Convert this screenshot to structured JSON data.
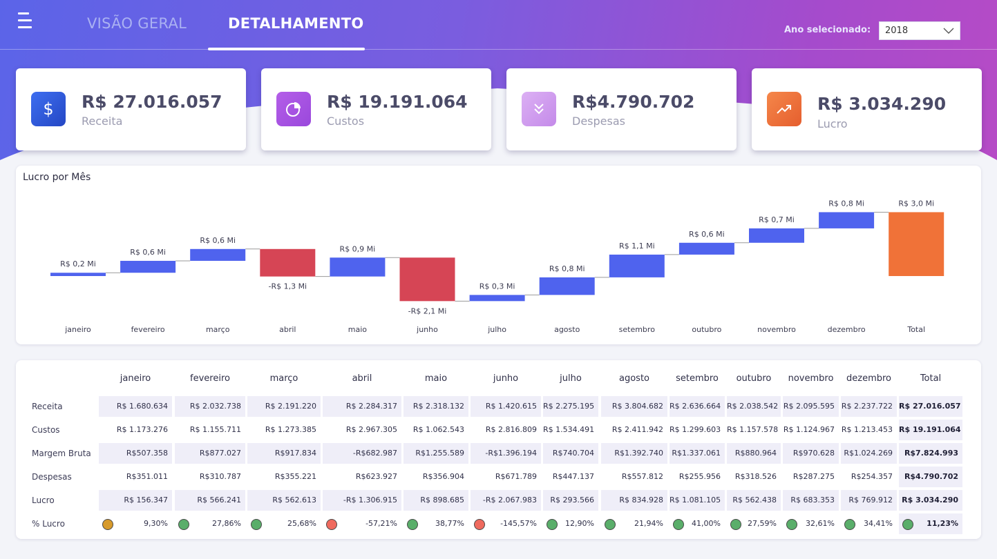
{
  "header": {
    "tabs": [
      {
        "label": "VISÃO GERAL",
        "active": false
      },
      {
        "label": "DETALHAMENTO",
        "active": true
      }
    ],
    "year_label": "Ano selecionado:",
    "year_value": "2018"
  },
  "kpis": [
    {
      "value": "R$ 27.016.057",
      "label": "Receita",
      "icon": "dollar-icon",
      "color": "#2f5bd9"
    },
    {
      "value": "R$ 19.191.064",
      "label": "Custos",
      "icon": "pie-chart-icon",
      "color": "#a84fe0"
    },
    {
      "value": "R$4.790.702",
      "label": "Despesas",
      "icon": "chevrons-down-icon",
      "color": "#cf9cf0"
    },
    {
      "value": "R$ 3.034.290",
      "label": "Lucro",
      "icon": "trending-up-icon",
      "color": "#f07238"
    }
  ],
  "colors": {
    "increase": "#4f63ee",
    "decrease": "#d64555",
    "total": "#f07238"
  },
  "chart_data": {
    "type": "waterfall",
    "title": "Lucro por Mês",
    "categories": [
      "janeiro",
      "fevereiro",
      "março",
      "abril",
      "maio",
      "junho",
      "julho",
      "agosto",
      "setembro",
      "outubro",
      "novembro",
      "dezembro",
      "Total"
    ],
    "values": [
      0.156347,
      0.566241,
      0.562613,
      -1.306915,
      0.898685,
      -2.067983,
      0.293566,
      0.834928,
      1.081105,
      0.562438,
      0.683353,
      0.769912,
      3.03429
    ],
    "data_labels": [
      "R$ 0,2 Mi",
      "R$ 0,6 Mi",
      "R$ 0,6 Mi",
      "-R$ 1,3 Mi",
      "R$ 0,9 Mi",
      "-R$ 2,1 Mi",
      "R$ 0,3 Mi",
      "R$ 0,8 Mi",
      "R$ 1,1 Mi",
      "R$ 0,6 Mi",
      "R$ 0,7 Mi",
      "R$ 0,8 Mi",
      "R$ 3,0 Mi"
    ],
    "unit": "Mi"
  },
  "table": {
    "columns": [
      "janeiro",
      "fevereiro",
      "março",
      "abril",
      "maio",
      "junho",
      "julho",
      "agosto",
      "setembro",
      "outubro",
      "novembro",
      "dezembro",
      "Total"
    ],
    "rows": [
      {
        "label": "Receita",
        "values": [
          "R$ 1.680.634",
          "R$ 2.032.738",
          "R$ 2.191.220",
          "R$ 2.284.317",
          "R$ 2.318.132",
          "R$ 1.420.615",
          "R$ 2.275.195",
          "R$ 3.804.682",
          "R$ 2.636.664",
          "R$ 2.038.542",
          "R$ 2.095.595",
          "R$ 2.237.722",
          "R$ 27.016.057"
        ]
      },
      {
        "label": "Custos",
        "values": [
          "R$ 1.173.276",
          "R$ 1.155.711",
          "R$ 1.273.385",
          "R$ 2.967.305",
          "R$ 1.062.543",
          "R$ 2.816.809",
          "R$ 1.534.491",
          "R$ 2.411.942",
          "R$ 1.299.603",
          "R$ 1.157.578",
          "R$ 1.124.967",
          "R$ 1.213.453",
          "R$ 19.191.064"
        ]
      },
      {
        "label": "Margem Bruta",
        "values": [
          "R$507.358",
          "R$877.027",
          "R$917.834",
          "-R$682.987",
          "R$1.255.589",
          "-R$1.396.194",
          "R$740.704",
          "R$1.392.740",
          "R$1.337.061",
          "R$880.964",
          "R$970.628",
          "R$1.024.269",
          "R$7.824.993"
        ]
      },
      {
        "label": "Despesas",
        "values": [
          "R$351.011",
          "R$310.787",
          "R$355.221",
          "R$623.927",
          "R$356.904",
          "R$671.789",
          "R$447.137",
          "R$557.812",
          "R$255.956",
          "R$318.526",
          "R$287.275",
          "R$254.357",
          "R$4.790.702"
        ]
      },
      {
        "label": "Lucro",
        "values": [
          "R$ 156.347",
          "R$ 566.241",
          "R$ 562.613",
          "-R$ 1.306.915",
          "R$ 898.685",
          "-R$ 2.067.983",
          "R$ 293.566",
          "R$ 834.928",
          "R$ 1.081.105",
          "R$ 562.438",
          "R$ 683.353",
          "R$ 769.912",
          "R$ 3.034.290"
        ]
      },
      {
        "label": "% Lucro",
        "values": [
          "9,30%",
          "27,86%",
          "25,68%",
          "-57,21%",
          "38,77%",
          "-145,57%",
          "12,90%",
          "21,94%",
          "41,00%",
          "27,59%",
          "32,61%",
          "34,41%",
          "11,23%"
        ],
        "status": [
          "#d79a2b",
          "#5aae6a",
          "#5aae6a",
          "#ef6a5e",
          "#5aae6a",
          "#ef6a5e",
          "#5aae6a",
          "#5aae6a",
          "#5aae6a",
          "#5aae6a",
          "#5aae6a",
          "#5aae6a",
          "#5aae6a"
        ]
      }
    ]
  }
}
